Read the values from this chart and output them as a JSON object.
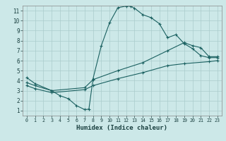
{
  "title": "",
  "xlabel": "Humidex (Indice chaleur)",
  "bg_color": "#cce8e8",
  "grid_color": "#aacccc",
  "line_color": "#1a6060",
  "xlim": [
    -0.5,
    23.5
  ],
  "ylim": [
    0.5,
    11.5
  ],
  "xticks": [
    0,
    1,
    2,
    3,
    4,
    5,
    6,
    7,
    8,
    9,
    10,
    11,
    12,
    13,
    14,
    15,
    16,
    17,
    18,
    19,
    20,
    21,
    22,
    23
  ],
  "yticks": [
    1,
    2,
    3,
    4,
    5,
    6,
    7,
    8,
    9,
    10,
    11
  ],
  "curve1_x": [
    0,
    1,
    3,
    4,
    5,
    6,
    7,
    7.5,
    8,
    9,
    10,
    11,
    12,
    12.5,
    13,
    14,
    15,
    16,
    17,
    18,
    19,
    20,
    21,
    22,
    23
  ],
  "curve1_y": [
    4.3,
    3.7,
    3.0,
    2.5,
    2.2,
    1.5,
    1.1,
    1.15,
    4.2,
    7.5,
    9.8,
    11.3,
    11.45,
    11.45,
    11.25,
    10.6,
    10.3,
    9.7,
    8.3,
    8.6,
    7.7,
    7.2,
    6.5,
    6.3,
    6.3
  ],
  "curve2_x": [
    0,
    1,
    3,
    7,
    8,
    11,
    14,
    17,
    19,
    20,
    21,
    22,
    23
  ],
  "curve2_y": [
    3.8,
    3.5,
    3.0,
    3.3,
    4.1,
    5.0,
    5.8,
    7.0,
    7.8,
    7.5,
    7.3,
    6.4,
    6.4
  ],
  "curve3_x": [
    0,
    1,
    3,
    7,
    8,
    11,
    14,
    17,
    19,
    22,
    23
  ],
  "curve3_y": [
    3.5,
    3.2,
    2.8,
    3.1,
    3.5,
    4.2,
    4.8,
    5.5,
    5.7,
    5.9,
    6.0
  ]
}
